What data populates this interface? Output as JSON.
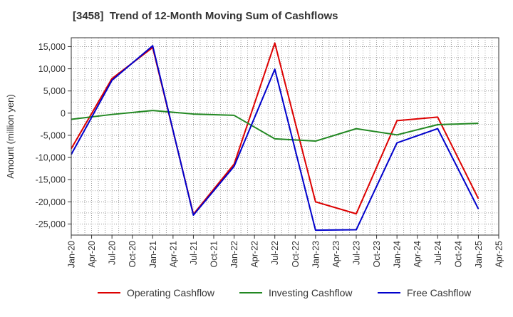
{
  "chart_data": {
    "type": "line",
    "title": "[3458]  Trend of 12-Month Moving Sum of Cashflows",
    "ylabel": "Amount (million yen)",
    "xlabel": "",
    "ylim": [
      -27500,
      17000
    ],
    "y_ticks": [
      15000,
      10000,
      5000,
      0,
      -5000,
      -10000,
      -15000,
      -20000,
      -25000
    ],
    "y_tick_labels": [
      "15,000",
      "10,000",
      "5,000",
      "0",
      "-5,000",
      "-10,000",
      "-15,000",
      "-20,000",
      "-25,000"
    ],
    "categories": [
      "Jan-20",
      "Apr-20",
      "Jul-20",
      "Oct-20",
      "Jan-21",
      "Apr-21",
      "Jul-21",
      "Oct-21",
      "Jan-22",
      "Apr-22",
      "Jul-22",
      "Oct-22",
      "Jan-23",
      "Apr-23",
      "Jul-23",
      "Oct-23",
      "Jan-24",
      "Apr-24",
      "Jul-24",
      "Oct-24",
      "Jan-25",
      "Apr-25"
    ],
    "grid": true,
    "legend_position": "bottom",
    "series": [
      {
        "name": "Operating Cashflow",
        "color": "#dd0000",
        "points": [
          {
            "x": "Jan-20",
            "y": -8000
          },
          {
            "x": "Jul-20",
            "y": 7800
          },
          {
            "x": "Jan-21",
            "y": 14800
          },
          {
            "x": "Jul-21",
            "y": -22800
          },
          {
            "x": "Jan-22",
            "y": -11500
          },
          {
            "x": "Jul-22",
            "y": 15800
          },
          {
            "x": "Jan-23",
            "y": -20000
          },
          {
            "x": "Jul-23",
            "y": -22700
          },
          {
            "x": "Jan-24",
            "y": -1700
          },
          {
            "x": "Jul-24",
            "y": -900
          },
          {
            "x": "Jan-25",
            "y": -19300
          }
        ]
      },
      {
        "name": "Investing Cashflow",
        "color": "#228822",
        "points": [
          {
            "x": "Jan-20",
            "y": -1400
          },
          {
            "x": "Jul-20",
            "y": -300
          },
          {
            "x": "Jan-21",
            "y": 600
          },
          {
            "x": "Jul-21",
            "y": -200
          },
          {
            "x": "Jan-22",
            "y": -500
          },
          {
            "x": "Jul-22",
            "y": -5800
          },
          {
            "x": "Jan-23",
            "y": -6300
          },
          {
            "x": "Jul-23",
            "y": -3500
          },
          {
            "x": "Jan-24",
            "y": -4900
          },
          {
            "x": "Jul-24",
            "y": -2600
          },
          {
            "x": "Jan-25",
            "y": -2300
          }
        ]
      },
      {
        "name": "Free Cashflow",
        "color": "#0000cc",
        "points": [
          {
            "x": "Jan-20",
            "y": -9300
          },
          {
            "x": "Jul-20",
            "y": 7400
          },
          {
            "x": "Jan-21",
            "y": 15200
          },
          {
            "x": "Jul-21",
            "y": -23000
          },
          {
            "x": "Jan-22",
            "y": -12000
          },
          {
            "x": "Jul-22",
            "y": 9900
          },
          {
            "x": "Jan-23",
            "y": -26400
          },
          {
            "x": "Jul-23",
            "y": -26300
          },
          {
            "x": "Jan-24",
            "y": -6700
          },
          {
            "x": "Jul-24",
            "y": -3500
          },
          {
            "x": "Jan-25",
            "y": -21600
          }
        ]
      }
    ]
  }
}
